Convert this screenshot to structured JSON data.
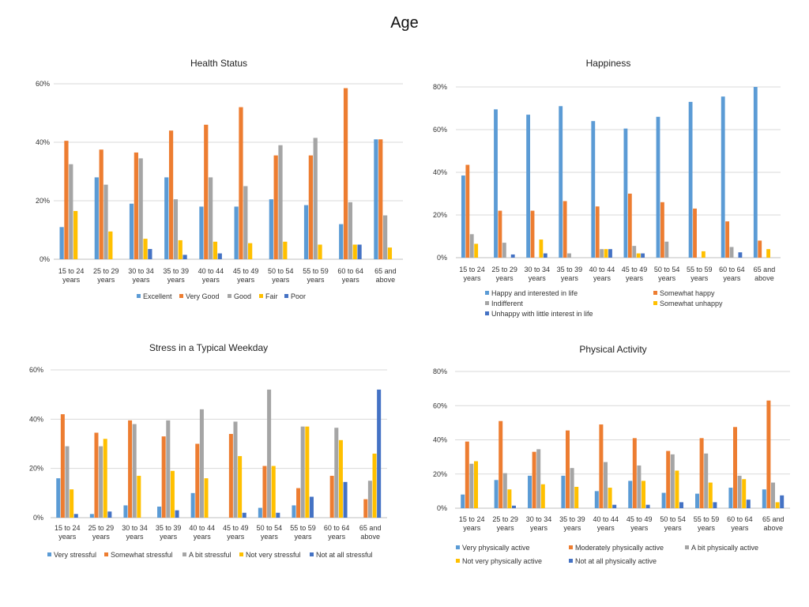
{
  "page": {
    "title": "Age"
  },
  "colors": {
    "c1": "#5b9bd5",
    "c2": "#ed7d31",
    "c3": "#a5a5a5",
    "c4": "#ffc000",
    "c5": "#4472c4"
  },
  "chart_data": [
    {
      "type": "bar",
      "title": "Health Status",
      "categories": [
        "15 to 24|years",
        "25 to 29|years",
        "30 to 34|years",
        "35 to 39|years",
        "40 to 44|years",
        "45 to 49|years",
        "50 to 54|years",
        "55 to 59|years",
        "60 to 64|years",
        "65 and|above"
      ],
      "ylim": [
        0,
        60
      ],
      "yticks": [
        0,
        20,
        40,
        60
      ],
      "legend": "bottom",
      "series": [
        {
          "name": "Excellent",
          "values": [
            11,
            28,
            19,
            28,
            18,
            18,
            20.5,
            18.5,
            12,
            41
          ]
        },
        {
          "name": "Very Good",
          "values": [
            40.5,
            37.5,
            36.5,
            44,
            46,
            52,
            35.5,
            35.5,
            58.5,
            41
          ]
        },
        {
          "name": "Good",
          "values": [
            32.5,
            25.5,
            34.5,
            20.5,
            28,
            25,
            39,
            41.5,
            19.5,
            15
          ]
        },
        {
          "name": "Fair",
          "values": [
            16.5,
            9.5,
            7,
            6.5,
            6,
            5.5,
            6,
            5,
            5,
            4
          ]
        },
        {
          "name": "Poor",
          "values": [
            0,
            0,
            3.5,
            1.5,
            2,
            0,
            0,
            0,
            5,
            0
          ]
        }
      ]
    },
    {
      "type": "bar",
      "title": "Happiness",
      "categories": [
        "15 to 24|years",
        "25 to 29|years",
        "30 to 34|years",
        "35 to 39|years",
        "40 to 44|years",
        "45 to 49|years",
        "50 to 54|years",
        "55 to 59|years",
        "60 to 64|years",
        "65 and|above"
      ],
      "ylim": [
        0,
        80
      ],
      "yticks": [
        0,
        20,
        40,
        60,
        80
      ],
      "legend": "bottom",
      "series": [
        {
          "name": "Happy and interested in life",
          "values": [
            38.5,
            69.5,
            67,
            71,
            64,
            60.5,
            66,
            73,
            75.5,
            80
          ]
        },
        {
          "name": "Somewhat happy",
          "values": [
            43.5,
            22,
            22,
            26.5,
            24,
            30,
            26,
            23,
            17,
            8
          ]
        },
        {
          "name": "Indifferent",
          "values": [
            11,
            7,
            0,
            2,
            4,
            5.5,
            7.5,
            0,
            5,
            0
          ]
        },
        {
          "name": "Somewhat unhappy",
          "values": [
            6.5,
            0,
            8.5,
            0,
            4,
            2,
            0,
            3,
            0,
            4
          ]
        },
        {
          "name": "Unhappy with little interest in life",
          "values": [
            0,
            1.5,
            2,
            0,
            4,
            2,
            0,
            0,
            2.5,
            0
          ]
        }
      ]
    },
    {
      "type": "bar",
      "title": "Stress in a Typical Weekday",
      "categories": [
        "15 to 24|years",
        "25 to 29|years",
        "30 to 34|years",
        "35 to 39|years",
        "40 to 44|years",
        "45 to 49|years",
        "50 to 54|years",
        "55 to 59|years",
        "60 to 64|years",
        "65 and|above"
      ],
      "ylim": [
        0,
        60
      ],
      "yticks": [
        0,
        20,
        40,
        60
      ],
      "legend": "bottom",
      "series": [
        {
          "name": "Very stressful",
          "values": [
            16,
            1.5,
            5,
            4.5,
            10,
            0,
            4,
            5,
            0,
            0
          ]
        },
        {
          "name": "Somewhat stressful",
          "values": [
            42,
            34.5,
            39.5,
            33,
            30,
            34,
            21,
            12,
            17,
            7.5
          ]
        },
        {
          "name": "A bit stressful",
          "values": [
            29,
            29,
            38,
            39.5,
            44,
            39,
            52,
            37,
            36.5,
            15
          ]
        },
        {
          "name": "Not very stressful",
          "values": [
            11.5,
            32,
            17,
            19,
            16,
            25,
            21,
            37,
            31.5,
            26
          ]
        },
        {
          "name": "Not at all stressful",
          "values": [
            1.5,
            2.5,
            0,
            3,
            0,
            2,
            2,
            8.5,
            14.5,
            52
          ]
        }
      ]
    },
    {
      "type": "bar",
      "title": "Physical Activity",
      "categories": [
        "15 to 24|years",
        "25 to 29|years",
        "30 to 34|years",
        "35 to 39|years",
        "40 to 44|years",
        "45 to 49|years",
        "50 to 54|years",
        "55 to 59|years",
        "60 to 64|years",
        "65 and|above"
      ],
      "ylim": [
        0,
        80
      ],
      "yticks": [
        0,
        20,
        40,
        60,
        80
      ],
      "legend": "bottom",
      "series": [
        {
          "name": "Very physically active",
          "values": [
            8,
            16.5,
            19,
            19,
            10,
            16,
            9,
            8.5,
            12,
            11
          ]
        },
        {
          "name": "Moderately physically active",
          "values": [
            39,
            51,
            33,
            45.5,
            49,
            41,
            33.5,
            41,
            47.5,
            63
          ]
        },
        {
          "name": "A bit physically active",
          "values": [
            26,
            20.5,
            34.5,
            23.5,
            27,
            25,
            31.5,
            32,
            19,
            15
          ]
        },
        {
          "name": "Not very physically active",
          "values": [
            27.5,
            11,
            14,
            12.5,
            12,
            16,
            22,
            15,
            17,
            3.5
          ]
        },
        {
          "name": "Not at all physically active",
          "values": [
            0,
            1.5,
            0,
            0,
            2,
            2,
            3.5,
            3.5,
            5,
            7.5
          ]
        }
      ]
    }
  ]
}
